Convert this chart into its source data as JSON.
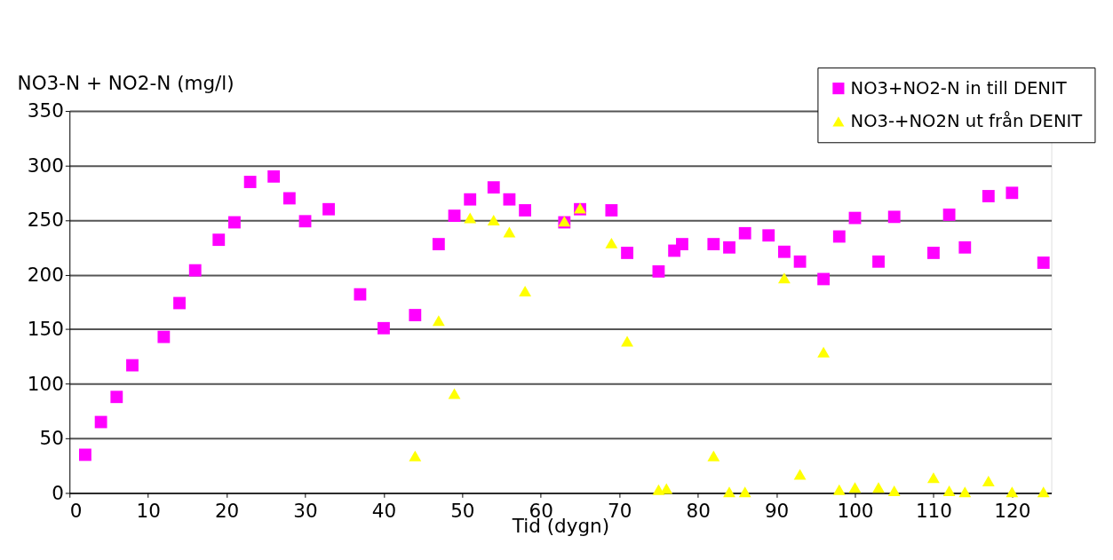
{
  "chart_data": {
    "type": "scatter",
    "xlabel": "Tid (dygn)",
    "ylabel": "NO3-N + NO2-N (mg/l)",
    "xlim": [
      0,
      125
    ],
    "xticks": [
      0,
      10,
      20,
      30,
      40,
      50,
      60,
      70,
      80,
      90,
      100,
      110,
      120
    ],
    "ylim": [
      0,
      350
    ],
    "yticks": [
      0,
      50,
      100,
      150,
      200,
      250,
      300,
      350
    ],
    "grid": "y",
    "legend": "top right",
    "series": [
      {
        "name": "NO3+NO2-N in till DENIT",
        "color": "#ff00ff",
        "marker": "square",
        "x": [
          2,
          4,
          6,
          8,
          12,
          14,
          16,
          19,
          21,
          23,
          26,
          28,
          30,
          33,
          37,
          40,
          44,
          47,
          49,
          51,
          54,
          56,
          58,
          63,
          65,
          69,
          71,
          75,
          77,
          78,
          82,
          84,
          86,
          89,
          91,
          93,
          96,
          98,
          100,
          103,
          105,
          110,
          112,
          114,
          117,
          120,
          124
        ],
        "values": [
          35,
          65,
          88,
          117,
          143,
          174,
          204,
          232,
          248,
          285,
          290,
          270,
          249,
          260,
          182,
          151,
          163,
          228,
          254,
          269,
          280,
          269,
          259,
          248,
          260,
          259,
          220,
          203,
          222,
          228,
          228,
          225,
          238,
          236,
          221,
          212,
          196,
          235,
          252,
          212,
          253,
          220,
          255,
          225,
          272,
          275,
          211
        ]
      },
      {
        "name": "NO3-+NO2N ut från DENIT",
        "color": "#ffff00",
        "marker": "triangle",
        "x": [
          44,
          47,
          49,
          51,
          54,
          56,
          58,
          63,
          65,
          69,
          71,
          75,
          76,
          82,
          84,
          86,
          91,
          93,
          96,
          98,
          100,
          103,
          105,
          110,
          112,
          114,
          117,
          120,
          124
        ],
        "values": [
          34,
          158,
          91,
          252,
          250,
          239,
          185,
          249,
          261,
          229,
          139,
          3,
          4,
          34,
          1,
          1,
          197,
          17,
          129,
          3,
          5,
          5,
          2,
          14,
          2,
          1,
          11,
          1,
          1
        ]
      }
    ]
  }
}
